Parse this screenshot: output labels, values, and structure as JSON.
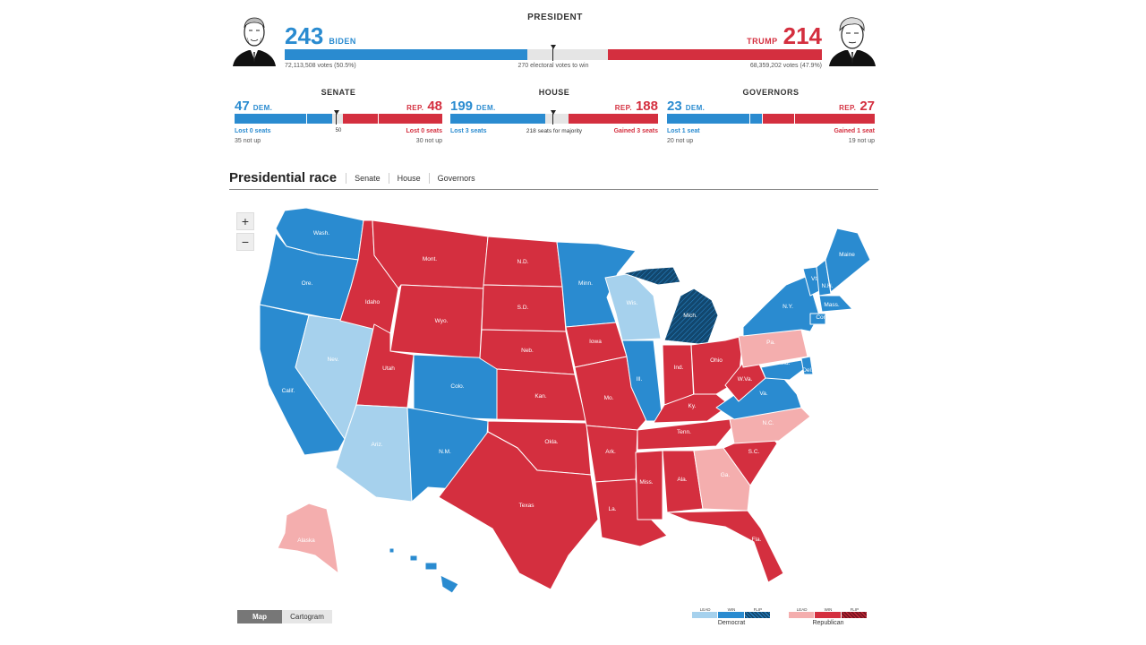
{
  "colors": {
    "dem_win": "#2a8bd0",
    "dem_lead": "#a6d1ed",
    "dem_flip": "#12476e",
    "rep_win": "#d42f3f",
    "rep_lead": "#f4aeae",
    "rep_flip": "#7a1420"
  },
  "president": {
    "title": "PRESIDENT",
    "dem": {
      "count": "243",
      "name": "BIDEN",
      "votes": "72,113,508 votes (50.5%)",
      "share": 243
    },
    "rep": {
      "count": "214",
      "name": "TRUMP",
      "votes": "68,359,202 votes (47.9%)",
      "share": 214
    },
    "total": 538,
    "majority_label": "270 electoral votes to win"
  },
  "races": {
    "senate": {
      "title": "SENATE",
      "total": 100,
      "dem": {
        "count": "47",
        "label": "DEM.",
        "value": 47,
        "note1": "Lost 0 seats",
        "note2": "35 not up"
      },
      "rep": {
        "count": "48",
        "label": "REP.",
        "value": 48,
        "note1": "Lost 0 seats",
        "note2": "30 not up"
      },
      "mid_label": "50"
    },
    "house": {
      "title": "HOUSE",
      "total": 435,
      "dem": {
        "count": "199",
        "label": "DEM.",
        "value": 199,
        "note1": "Lost 3 seats"
      },
      "rep": {
        "count": "188",
        "label": "REP.",
        "value": 188,
        "note1": "Gained 3 seats"
      },
      "mid_label": "218 seats for majority"
    },
    "governors": {
      "title": "GOVERNORS",
      "total": 50,
      "dem": {
        "count": "23",
        "label": "DEM.",
        "value": 23,
        "note1": "Lost 1 seat",
        "note2": "20 not up"
      },
      "rep": {
        "count": "27",
        "label": "REP.",
        "value": 27,
        "note1": "Gained 1 seat",
        "note2": "19 not up"
      }
    }
  },
  "tabs": {
    "active": "Presidential race",
    "items": [
      "Senate",
      "House",
      "Governors"
    ]
  },
  "map": {
    "zoom_in": "+",
    "zoom_out": "−",
    "states": [
      {
        "abbr": "Wash.",
        "status": "dem_win"
      },
      {
        "abbr": "Ore.",
        "status": "dem_win"
      },
      {
        "abbr": "Calif.",
        "status": "dem_win"
      },
      {
        "abbr": "Nev.",
        "status": "dem_lead"
      },
      {
        "abbr": "Idaho",
        "status": "rep_win"
      },
      {
        "abbr": "Mont.",
        "status": "rep_win"
      },
      {
        "abbr": "Wyo.",
        "status": "rep_win"
      },
      {
        "abbr": "Utah",
        "status": "rep_win"
      },
      {
        "abbr": "Colo.",
        "status": "dem_win"
      },
      {
        "abbr": "Ariz.",
        "status": "dem_lead"
      },
      {
        "abbr": "N.M.",
        "status": "dem_win"
      },
      {
        "abbr": "N.D.",
        "status": "rep_win"
      },
      {
        "abbr": "S.D.",
        "status": "rep_win"
      },
      {
        "abbr": "Neb.",
        "status": "rep_win"
      },
      {
        "abbr": "Kan.",
        "status": "rep_win"
      },
      {
        "abbr": "Okla.",
        "status": "rep_win"
      },
      {
        "abbr": "Texas",
        "status": "rep_win"
      },
      {
        "abbr": "Minn.",
        "status": "dem_win"
      },
      {
        "abbr": "Iowa",
        "status": "rep_win"
      },
      {
        "abbr": "Mo.",
        "status": "rep_win"
      },
      {
        "abbr": "Ark.",
        "status": "rep_win"
      },
      {
        "abbr": "La.",
        "status": "rep_win"
      },
      {
        "abbr": "Wis.",
        "status": "dem_lead"
      },
      {
        "abbr": "Ill.",
        "status": "dem_win"
      },
      {
        "abbr": "Mich.",
        "status": "dem_flip"
      },
      {
        "abbr": "Ind.",
        "status": "rep_win"
      },
      {
        "abbr": "Ohio",
        "status": "rep_win"
      },
      {
        "abbr": "Ky.",
        "status": "rep_win"
      },
      {
        "abbr": "Tenn.",
        "status": "rep_win"
      },
      {
        "abbr": "Miss.",
        "status": "rep_win"
      },
      {
        "abbr": "Ala.",
        "status": "rep_win"
      },
      {
        "abbr": "Ga.",
        "status": "rep_lead"
      },
      {
        "abbr": "Fla.",
        "status": "rep_win"
      },
      {
        "abbr": "S.C.",
        "status": "rep_win"
      },
      {
        "abbr": "N.C.",
        "status": "rep_lead"
      },
      {
        "abbr": "Va.",
        "status": "dem_win"
      },
      {
        "abbr": "W.Va.",
        "status": "rep_win"
      },
      {
        "abbr": "Pa.",
        "status": "rep_lead"
      },
      {
        "abbr": "N.Y.",
        "status": "dem_win"
      },
      {
        "abbr": "Vt.",
        "status": "dem_win"
      },
      {
        "abbr": "N.H.",
        "status": "dem_win"
      },
      {
        "abbr": "Maine",
        "status": "dem_win"
      },
      {
        "abbr": "Mass.",
        "status": "dem_win"
      },
      {
        "abbr": "Conn.",
        "status": "dem_win"
      },
      {
        "abbr": "Md.",
        "status": "dem_win"
      },
      {
        "abbr": "Del.",
        "status": "dem_win"
      },
      {
        "abbr": "Alaska",
        "status": "rep_lead"
      },
      {
        "abbr": "Hawaii",
        "status": "dem_win"
      }
    ]
  },
  "view_toggle": {
    "map": "Map",
    "cartogram": "Cartogram"
  },
  "legend": {
    "dem": {
      "name": "Democrat",
      "lead": "LEAD",
      "win": "WIN",
      "flip": "FLIP"
    },
    "rep": {
      "name": "Republican",
      "lead": "LEAD",
      "win": "WIN",
      "flip": "FLIP"
    }
  }
}
